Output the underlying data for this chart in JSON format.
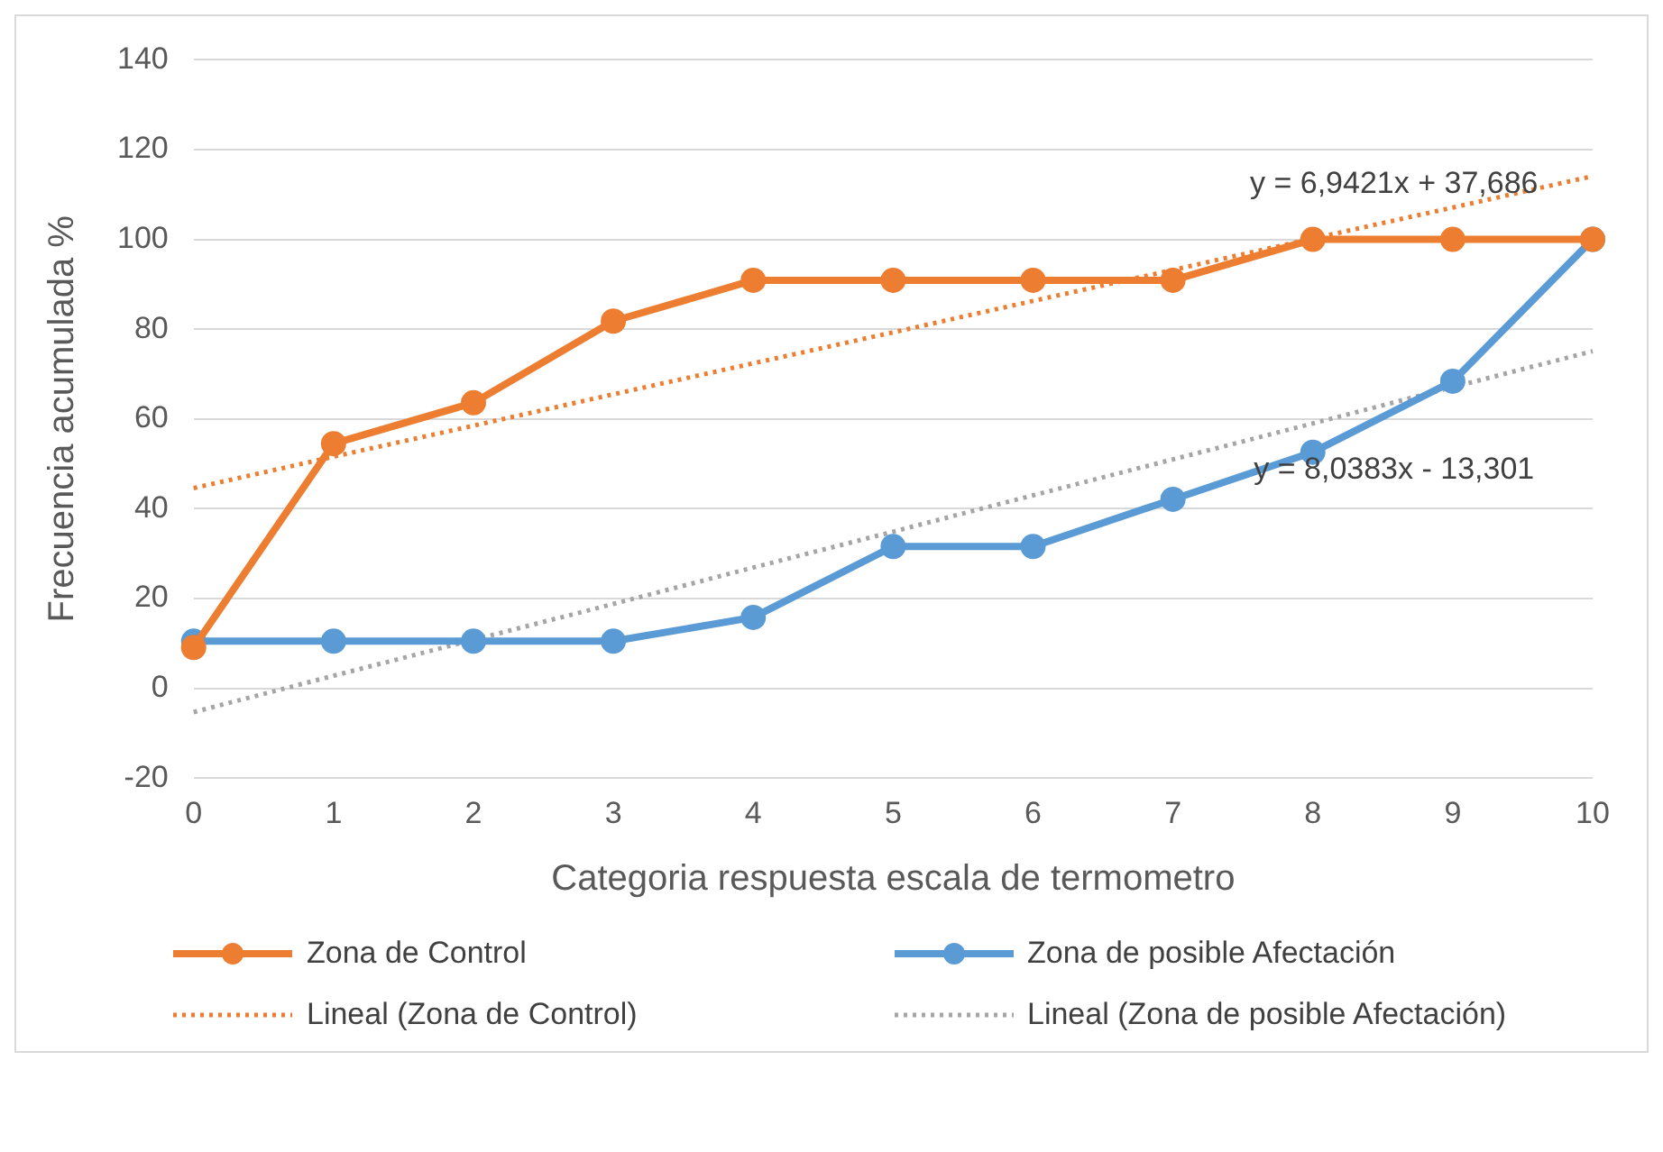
{
  "chart_data": {
    "type": "line",
    "xlabel": "Categoria respuesta escala de termometro",
    "ylabel": "Frecuencia acumulada %",
    "categories": [
      "0",
      "1",
      "2",
      "3",
      "4",
      "5",
      "6",
      "7",
      "8",
      "9",
      "10"
    ],
    "series": [
      {
        "name": "Zona de Control",
        "color": "#ed7d31",
        "marker": "circle",
        "line_style": "solid",
        "values": [
          9.1,
          54.5,
          63.6,
          81.8,
          90.9,
          90.9,
          90.9,
          90.9,
          100,
          100,
          100
        ]
      },
      {
        "name": "Zona de posible Afectación",
        "color": "#5b9bd5",
        "marker": "circle",
        "line_style": "solid",
        "values": [
          10.5,
          10.5,
          10.5,
          10.5,
          15.8,
          31.6,
          31.6,
          42.1,
          52.6,
          68.4,
          100
        ]
      },
      {
        "name": "Lineal (Zona de Control)",
        "color": "#ed7d31",
        "marker": "none",
        "line_style": "dotted",
        "values": [
          44.6,
          51.6,
          58.5,
          65.5,
          72.4,
          79.3,
          86.3,
          93.2,
          100.2,
          107.1,
          114.1
        ]
      },
      {
        "name": "Lineal (Zona de posible Afectación)",
        "color": "#a5a5a5",
        "marker": "none",
        "line_style": "dotted",
        "values": [
          -5.3,
          2.8,
          10.8,
          18.8,
          26.9,
          34.9,
          43.0,
          51.0,
          59.0,
          67.1,
          75.1
        ]
      }
    ],
    "ylim": [
      -20,
      140
    ],
    "yticks": [
      -20,
      0,
      20,
      40,
      60,
      80,
      100,
      120,
      140
    ],
    "grid": "y",
    "legend": "bottom",
    "annotations": [
      "y = 6,9421x + 37,686",
      "y = 8,0383x - 13,301"
    ]
  }
}
